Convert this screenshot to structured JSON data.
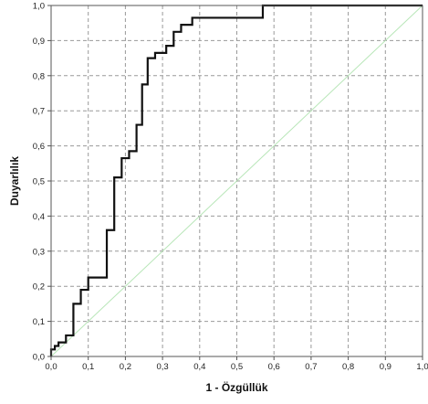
{
  "chart_data": {
    "type": "line",
    "xlabel": "1 - Özgüllük",
    "ylabel": "Duyarlılık",
    "xlim": [
      0,
      1
    ],
    "ylim": [
      0,
      1
    ],
    "grid": true,
    "x_ticks": [
      "0,0",
      "0,1",
      "0,2",
      "0,3",
      "0,4",
      "0,5",
      "0,6",
      "0,7",
      "0,8",
      "0,9",
      "1,0"
    ],
    "y_ticks": [
      "0,0",
      "0,1",
      "0,2",
      "0,3",
      "0,4",
      "0,5",
      "0,6",
      "0,7",
      "0,8",
      "0,9",
      "1,0"
    ],
    "colors": {
      "roc": "#111111",
      "reference": "#b8e6b8",
      "grid": "#999999"
    },
    "series": [
      {
        "style": "step",
        "color": "#111111",
        "x": [
          0.0,
          0.0,
          0.01,
          0.01,
          0.02,
          0.02,
          0.04,
          0.04,
          0.06,
          0.06,
          0.08,
          0.08,
          0.1,
          0.1,
          0.15,
          0.15,
          0.17,
          0.17,
          0.19,
          0.19,
          0.21,
          0.21,
          0.23,
          0.23,
          0.245,
          0.245,
          0.26,
          0.26,
          0.28,
          0.28,
          0.31,
          0.31,
          0.33,
          0.33,
          0.35,
          0.35,
          0.38,
          0.38,
          0.41,
          0.41,
          0.57,
          0.57,
          1.0
        ],
        "y": [
          0.0,
          0.02,
          0.02,
          0.03,
          0.03,
          0.04,
          0.04,
          0.06,
          0.06,
          0.15,
          0.15,
          0.19,
          0.19,
          0.225,
          0.225,
          0.36,
          0.36,
          0.51,
          0.51,
          0.565,
          0.565,
          0.585,
          0.585,
          0.66,
          0.66,
          0.775,
          0.775,
          0.85,
          0.85,
          0.865,
          0.865,
          0.885,
          0.885,
          0.925,
          0.925,
          0.945,
          0.945,
          0.965,
          0.965,
          0.965,
          0.965,
          1.0,
          1.0
        ]
      },
      {
        "style": "reference",
        "color": "#b8e6b8",
        "x": [
          0,
          1
        ],
        "y": [
          0,
          1
        ]
      }
    ]
  }
}
